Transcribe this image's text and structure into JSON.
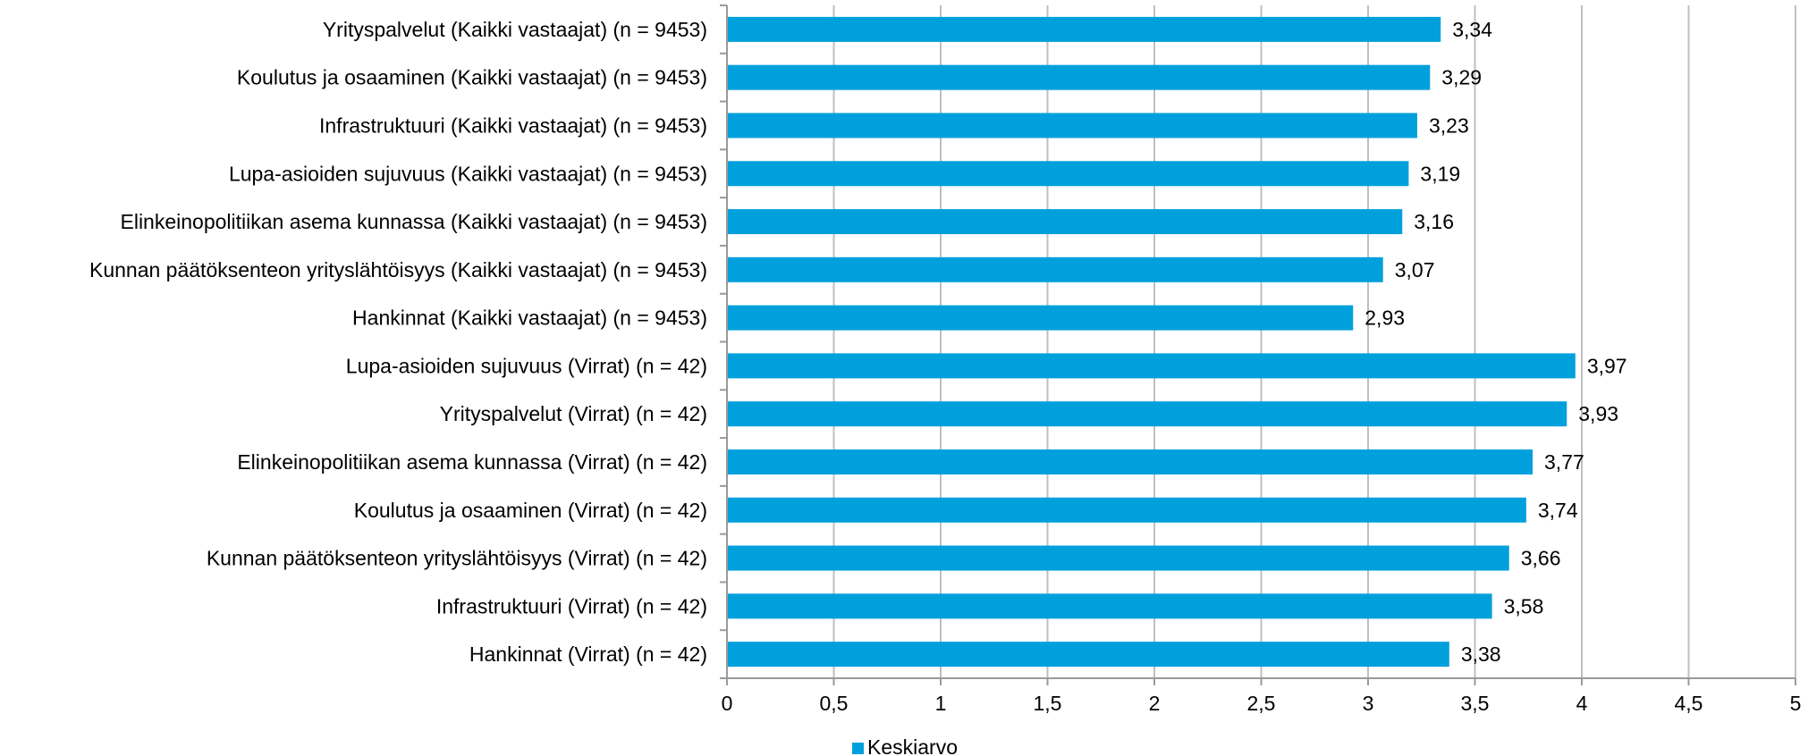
{
  "chart_data": {
    "type": "bar",
    "orientation": "horizontal",
    "title": "",
    "xlabel": "",
    "ylabel": "",
    "xlim": [
      0,
      5
    ],
    "x_ticks": [
      "0",
      "0,5",
      "1",
      "1,5",
      "2",
      "2,5",
      "3",
      "3,5",
      "4",
      "4,5",
      "5"
    ],
    "x_tick_values": [
      0,
      0.5,
      1,
      1.5,
      2,
      2.5,
      3,
      3.5,
      4,
      4.5,
      5
    ],
    "grid": "vertical",
    "legend": {
      "position": "bottom",
      "entries": [
        "Keskiarvo"
      ]
    },
    "categories": [
      "Yrityspalvelut (Kaikki vastaajat) (n = 9453)",
      "Koulutus ja osaaminen (Kaikki vastaajat) (n = 9453)",
      "Infrastruktuuri (Kaikki vastaajat) (n = 9453)",
      "Lupa-asioiden sujuvuus (Kaikki vastaajat) (n = 9453)",
      "Elinkeinopolitiikan asema kunnassa (Kaikki vastaajat) (n = 9453)",
      "Kunnan päätöksenteon yrityslähtöisyys (Kaikki vastaajat) (n = 9453)",
      "Hankinnat (Kaikki vastaajat) (n = 9453)",
      "Lupa-asioiden sujuvuus (Virrat) (n = 42)",
      "Yrityspalvelut (Virrat) (n = 42)",
      "Elinkeinopolitiikan asema kunnassa (Virrat) (n = 42)",
      "Koulutus ja osaaminen (Virrat) (n = 42)",
      "Kunnan päätöksenteon yrityslähtöisyys (Virrat) (n = 42)",
      "Infrastruktuuri (Virrat) (n = 42)",
      "Hankinnat (Virrat) (n = 42)"
    ],
    "series": [
      {
        "name": "Keskiarvo",
        "color": "#00a0dc",
        "values": [
          3.34,
          3.29,
          3.23,
          3.19,
          3.16,
          3.07,
          2.93,
          3.97,
          3.93,
          3.77,
          3.74,
          3.66,
          3.58,
          3.38
        ],
        "value_labels": [
          "3,34",
          "3,29",
          "3,23",
          "3,19",
          "3,16",
          "3,07",
          "2,93",
          "3,97",
          "3,93",
          "3,77",
          "3,74",
          "3,66",
          "3,58",
          "3,38"
        ]
      }
    ]
  },
  "colors": {
    "bar": "#00a0dc",
    "grid": "#bfbfbf",
    "axis": "#9a9a9a"
  }
}
